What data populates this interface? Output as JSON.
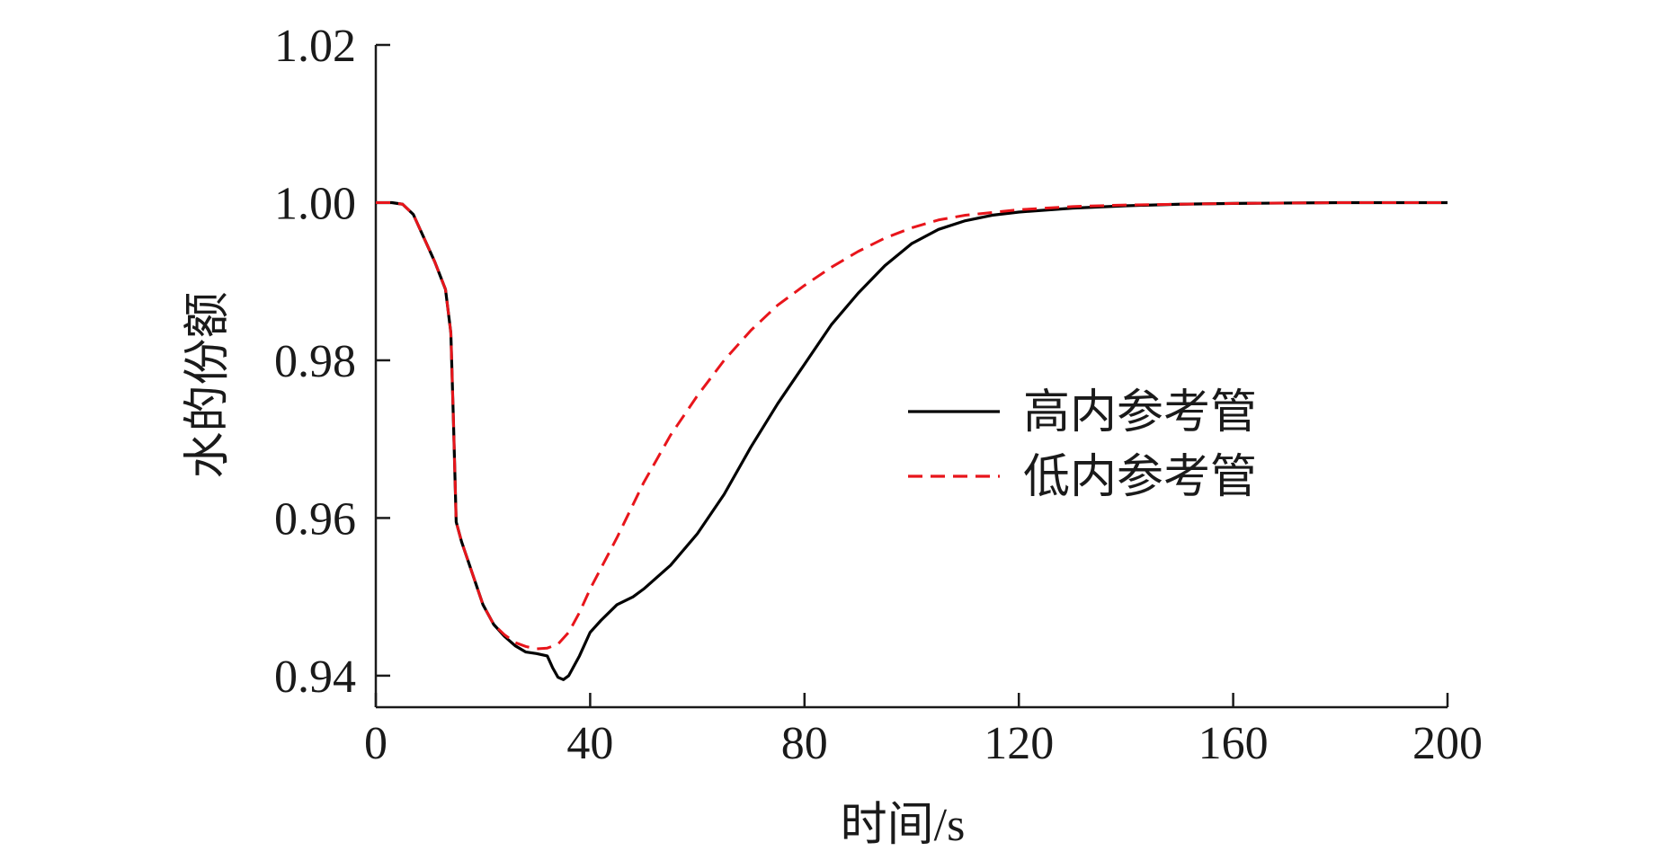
{
  "chart_data": {
    "type": "line",
    "title": "",
    "xlabel": "时间/s",
    "ylabel": "水的份额",
    "xlim": [
      0,
      200
    ],
    "ylim": [
      0.936,
      1.02
    ],
    "xticks": [
      0,
      40,
      80,
      120,
      160,
      200
    ],
    "xtick_labels": [
      "0",
      "40",
      "80",
      "120",
      "160",
      "200"
    ],
    "yticks": [
      0.94,
      0.96,
      0.98,
      1.0,
      1.02
    ],
    "ytick_labels": [
      "0.94",
      "0.96",
      "0.98",
      "1.00",
      "1.02"
    ],
    "grid": false,
    "legend_position": "right-center",
    "series": [
      {
        "name": "高内参考管",
        "color": "#000000",
        "dash": "solid",
        "x": [
          0,
          3,
          5,
          7,
          9,
          11,
          13,
          14,
          14.5,
          15,
          16,
          18,
          20,
          22,
          24,
          26,
          28,
          30,
          32,
          33,
          34,
          35,
          36,
          38,
          40,
          42,
          45,
          48,
          50,
          55,
          60,
          65,
          70,
          75,
          80,
          85,
          90,
          95,
          100,
          105,
          110,
          115,
          120,
          130,
          140,
          150,
          160,
          180,
          200
        ],
        "y": [
          1.0,
          1.0,
          0.9998,
          0.9985,
          0.9955,
          0.9925,
          0.989,
          0.9835,
          0.972,
          0.9595,
          0.957,
          0.953,
          0.949,
          0.9465,
          0.945,
          0.9438,
          0.943,
          0.9428,
          0.9425,
          0.941,
          0.9398,
          0.9395,
          0.94,
          0.9425,
          0.9455,
          0.947,
          0.949,
          0.95,
          0.951,
          0.954,
          0.958,
          0.963,
          0.969,
          0.9745,
          0.9795,
          0.9845,
          0.9885,
          0.992,
          0.9948,
          0.9966,
          0.9977,
          0.9984,
          0.9988,
          0.9993,
          0.9996,
          0.9998,
          0.9999,
          1.0,
          1.0
        ]
      },
      {
        "name": "低内参考管",
        "color": "#e8151b",
        "dash": "dashed",
        "x": [
          0,
          3,
          5,
          7,
          9,
          11,
          13,
          14,
          14.5,
          15,
          16,
          18,
          20,
          22,
          24,
          26,
          28,
          30,
          32,
          34,
          36,
          38,
          40,
          45,
          50,
          55,
          60,
          65,
          70,
          75,
          80,
          85,
          90,
          95,
          100,
          105,
          110,
          120,
          130,
          140,
          160,
          180,
          200
        ],
        "y": [
          1.0,
          1.0,
          0.9998,
          0.9985,
          0.9955,
          0.9925,
          0.989,
          0.9835,
          0.972,
          0.9595,
          0.957,
          0.953,
          0.949,
          0.9465,
          0.9452,
          0.9442,
          0.9437,
          0.9434,
          0.9435,
          0.944,
          0.9455,
          0.948,
          0.951,
          0.9575,
          0.9645,
          0.9705,
          0.9755,
          0.98,
          0.9838,
          0.987,
          0.9895,
          0.9918,
          0.9938,
          0.9955,
          0.9968,
          0.9978,
          0.9984,
          0.9991,
          0.9995,
          0.9997,
          0.9999,
          1.0,
          1.0
        ]
      }
    ]
  }
}
